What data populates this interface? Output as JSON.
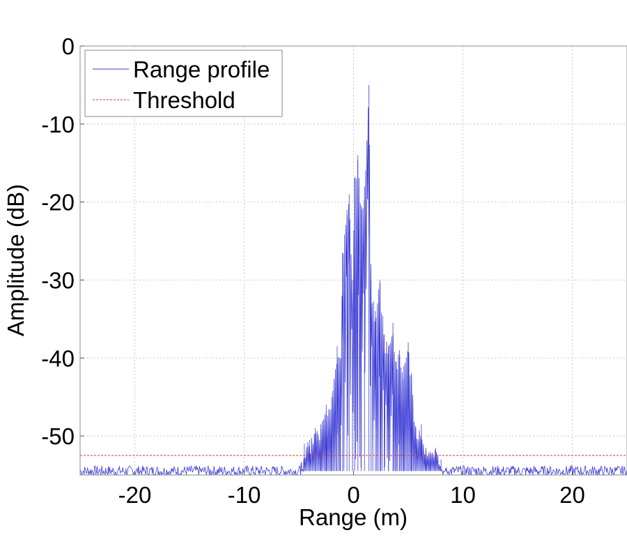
{
  "chart_data": {
    "type": "line",
    "xlabel": "Range (m)",
    "ylabel": "Amplitude (dB)",
    "xlim": [
      -25,
      25
    ],
    "ylim": [
      -55,
      0
    ],
    "xticks": [
      -20,
      -10,
      0,
      10,
      20
    ],
    "yticks": [
      0,
      -10,
      -20,
      -30,
      -40,
      -50
    ],
    "grid": true,
    "legend": {
      "placement": "top-left",
      "entries": [
        "Range profile",
        "Threshold"
      ]
    },
    "series": [
      {
        "name": "Range profile",
        "color": "#3b3bd4",
        "style": "solid",
        "noise_floor_db": -54.5,
        "x": [
          -4.8,
          -4.5,
          -4.0,
          -3.5,
          -3.0,
          -2.5,
          -2.0,
          -1.5,
          -1.2,
          -1.0,
          -0.6,
          -0.4,
          -0.1,
          0.1,
          0.4,
          0.7,
          1.0,
          1.4,
          1.6,
          2.0,
          2.4,
          2.8,
          3.2,
          3.6,
          3.9,
          4.2,
          4.6,
          5.0,
          5.3,
          5.7,
          6.2,
          6.6,
          7.0,
          7.5,
          8.0,
          8.5
        ],
        "y": [
          -53.5,
          -51.0,
          -50.5,
          -49.0,
          -48.5,
          -46.0,
          -45.0,
          -38.5,
          -40.0,
          -26.5,
          -21.0,
          -19.0,
          -30.0,
          -17.0,
          -14.0,
          -20.5,
          -18.0,
          -5.0,
          -30.0,
          -34.0,
          -30.0,
          -37.0,
          -38.5,
          -35.5,
          -40.5,
          -39.0,
          -41.0,
          -38.0,
          -42.0,
          -49.0,
          -48.5,
          -51.5,
          -52.0,
          -51.5,
          -53.0,
          -54.0
        ]
      },
      {
        "name": "Threshold",
        "color": "#e03030",
        "style": "dashed",
        "x": [
          -25,
          25
        ],
        "y": [
          -52.5,
          -52.5
        ]
      }
    ]
  }
}
